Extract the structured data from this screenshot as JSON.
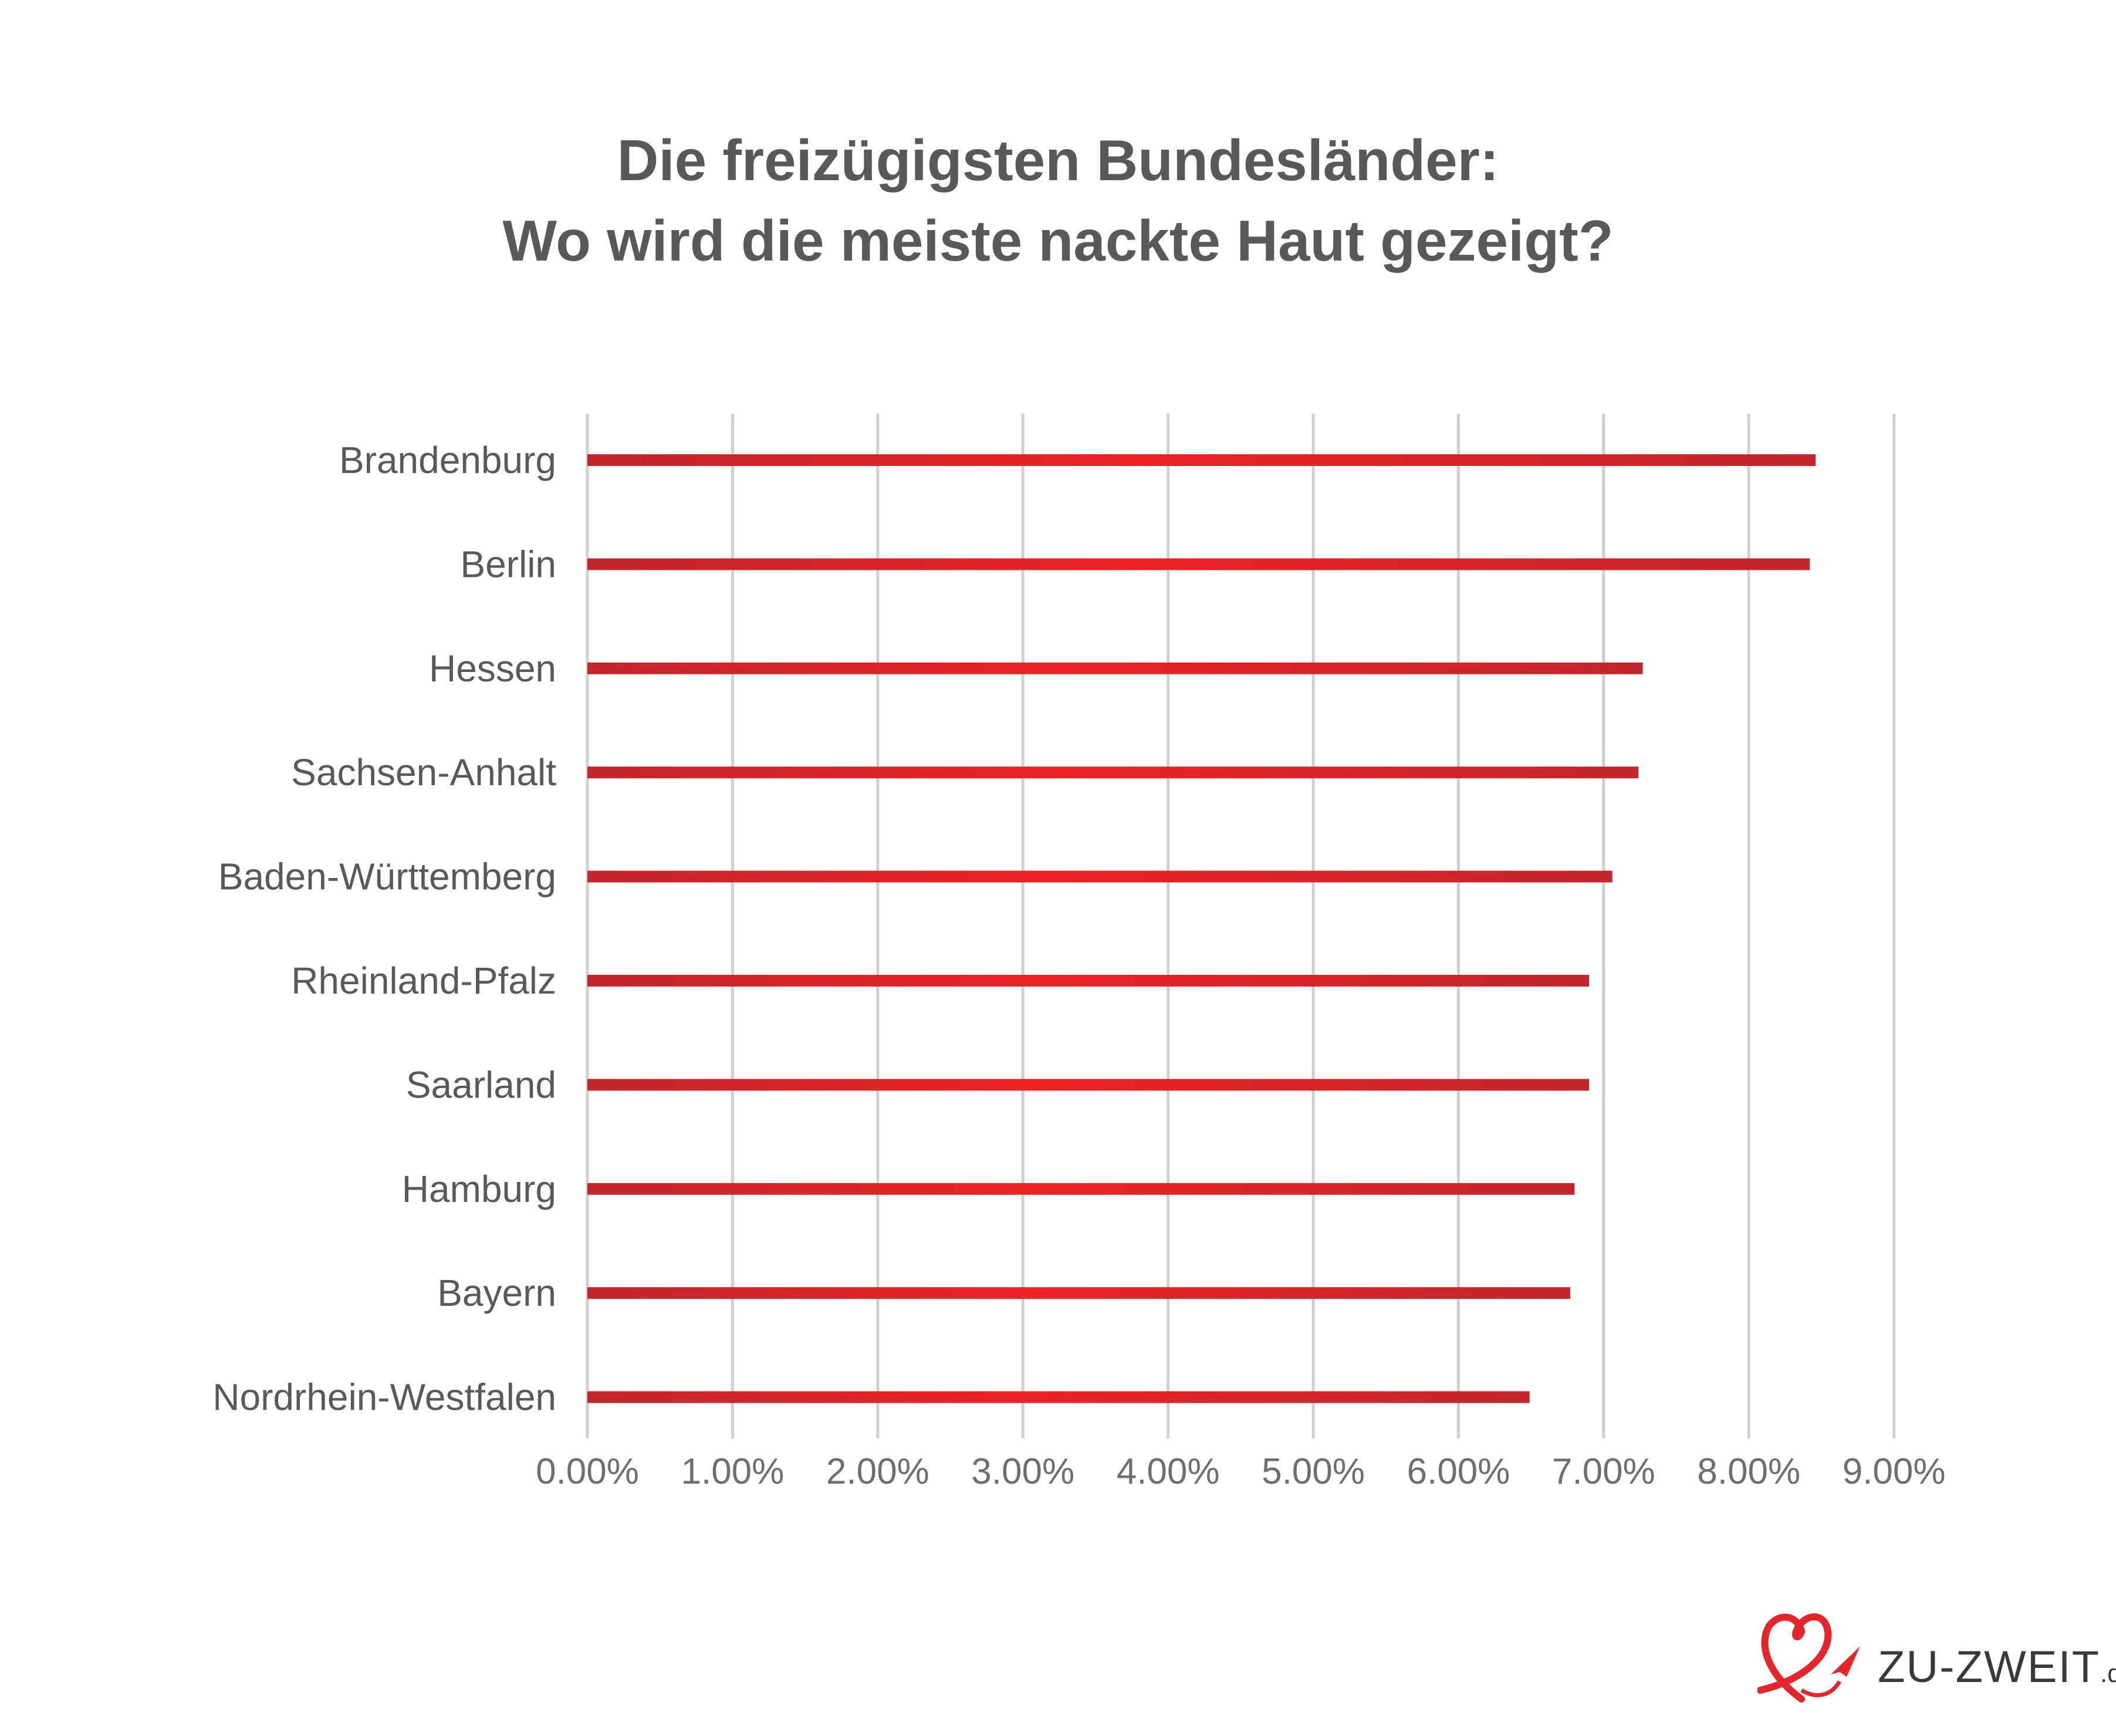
{
  "chart_data": {
    "type": "bar",
    "orientation": "horizontal",
    "title_lines": [
      "Die freizügigsten Bundesländer:",
      "Wo wird die meiste nackte Haut gezeigt?"
    ],
    "categories": [
      "Brandenburg",
      "Berlin",
      "Hessen",
      "Sachsen-Anhalt",
      "Baden-Württemberg",
      "Rheinland-Pfalz",
      "Saarland",
      "Hamburg",
      "Bayern",
      "Nordrhein-Westfalen"
    ],
    "values": [
      8.46,
      8.42,
      7.27,
      7.24,
      7.06,
      6.9,
      6.9,
      6.8,
      6.77,
      6.49
    ],
    "unit": "%",
    "xlim": [
      0,
      9
    ],
    "xticks": [
      "0.00%",
      "1.00%",
      "2.00%",
      "3.00%",
      "4.00%",
      "5.00%",
      "6.00%",
      "7.00%",
      "8.00%",
      "9.00%"
    ],
    "grid": true,
    "xlabel": "",
    "ylabel": "",
    "colors": {
      "bar_center": "#ec2227",
      "bar_edge": "#c1272d",
      "grid": "#cfcfcf",
      "text": "#58595b"
    }
  },
  "logo": {
    "name": "ZU-ZWEIT",
    "suffix": ".de"
  }
}
